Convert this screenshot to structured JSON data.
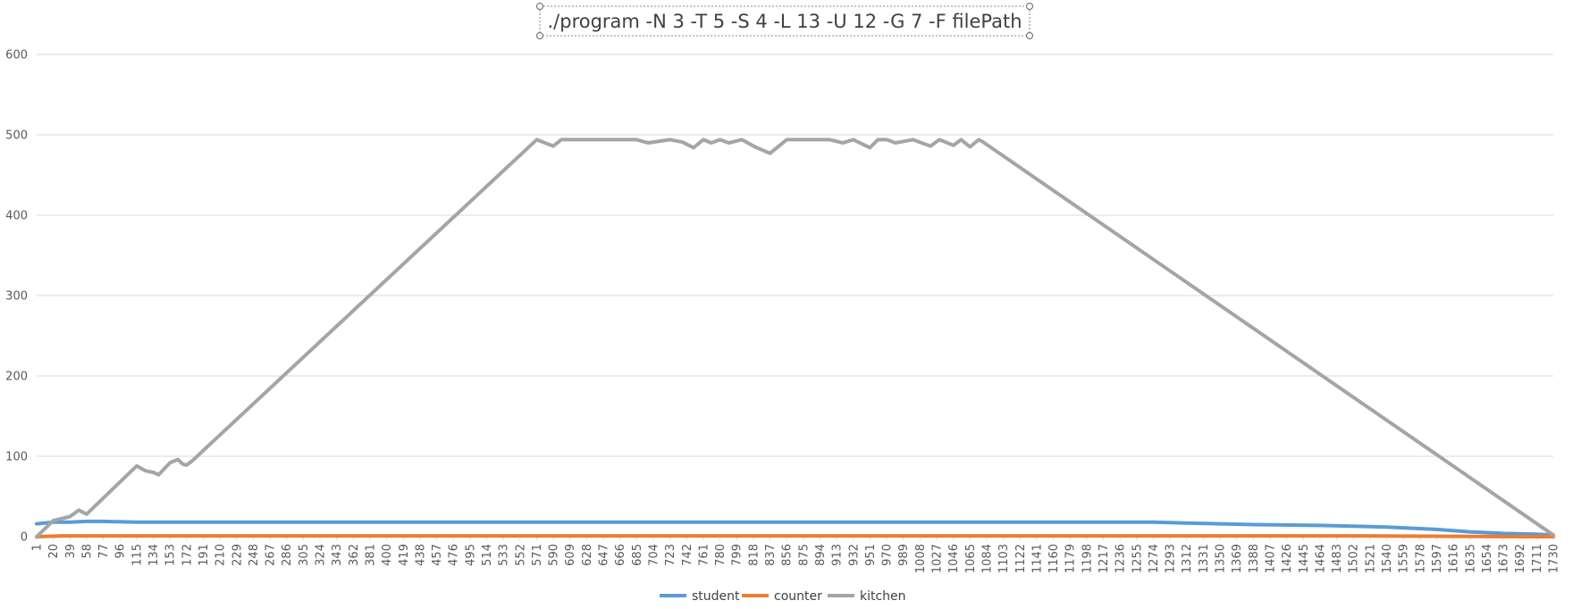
{
  "chart_data": {
    "type": "line",
    "title": "./program -N 3 -T 5 -S 4 -L 13 -U 12 -G 7 -F filePath",
    "xlabel": "",
    "ylabel": "",
    "x_range": [
      1,
      1730
    ],
    "ylim": [
      0,
      600
    ],
    "y_ticks": [
      0,
      100,
      200,
      300,
      400,
      500,
      600
    ],
    "x_ticks": [
      1,
      20,
      39,
      58,
      77,
      96,
      115,
      134,
      153,
      172,
      191,
      210,
      229,
      248,
      267,
      286,
      305,
      324,
      343,
      362,
      381,
      400,
      419,
      438,
      457,
      476,
      495,
      514,
      533,
      552,
      571,
      590,
      609,
      628,
      647,
      666,
      685,
      704,
      723,
      742,
      761,
      780,
      799,
      818,
      837,
      856,
      875,
      894,
      913,
      932,
      951,
      970,
      989,
      1008,
      1027,
      1046,
      1065,
      1084,
      1103,
      1122,
      1141,
      1160,
      1179,
      1198,
      1217,
      1236,
      1255,
      1274,
      1293,
      1312,
      1331,
      1350,
      1369,
      1388,
      1407,
      1426,
      1445,
      1464,
      1483,
      1502,
      1521,
      1540,
      1559,
      1578,
      1597,
      1616,
      1635,
      1654,
      1673,
      1692,
      1711,
      1730
    ],
    "grid": true,
    "legend_position": "bottom",
    "series": [
      {
        "name": "student",
        "color": "#5b9bd5",
        "x": [
          1,
          20,
          39,
          58,
          77,
          115,
          172,
          229,
          305,
          400,
          500,
          571,
          650,
          750,
          856,
          951,
          1065,
          1180,
          1274,
          1312,
          1388,
          1464,
          1540,
          1597,
          1635,
          1673,
          1711,
          1730
        ],
        "y": [
          16,
          18,
          18,
          19,
          19,
          18,
          18,
          18,
          18,
          18,
          18,
          18,
          18,
          18,
          18,
          18,
          18,
          18,
          18,
          17,
          15,
          14,
          12,
          9,
          6,
          4,
          3,
          2
        ]
      },
      {
        "name": "counter",
        "color": "#ed7d31",
        "x": [
          1,
          30,
          58,
          100,
          172,
          300,
          500,
          700,
          900,
          1100,
          1300,
          1500,
          1700,
          1730
        ],
        "y": [
          0,
          1,
          1,
          1,
          1,
          1,
          1,
          1,
          1,
          1,
          1,
          1,
          0,
          0
        ]
      },
      {
        "name": "kitchen",
        "color": "#a5a5a5",
        "x": [
          1,
          20,
          39,
          49,
          58,
          115,
          125,
          134,
          140,
          153,
          162,
          168,
          172,
          178,
          571,
          590,
          599,
          609,
          640,
          685,
          698,
          723,
          737,
          750,
          761,
          770,
          780,
          790,
          805,
          820,
          837,
          856,
          880,
          905,
          920,
          932,
          951,
          960,
          970,
          980,
          1000,
          1020,
          1030,
          1046,
          1055,
          1065,
          1075,
          1080,
          1730
        ],
        "y": [
          0,
          20,
          25,
          33,
          28,
          88,
          82,
          80,
          77,
          92,
          96,
          90,
          89,
          94,
          494,
          486,
          494,
          494,
          494,
          494,
          490,
          494,
          491,
          484,
          494,
          490,
          494,
          490,
          494,
          485,
          477,
          494,
          494,
          494,
          490,
          494,
          484,
          494,
          494,
          490,
          494,
          486,
          494,
          487,
          494,
          485,
          494,
          491,
          2
        ]
      }
    ]
  }
}
